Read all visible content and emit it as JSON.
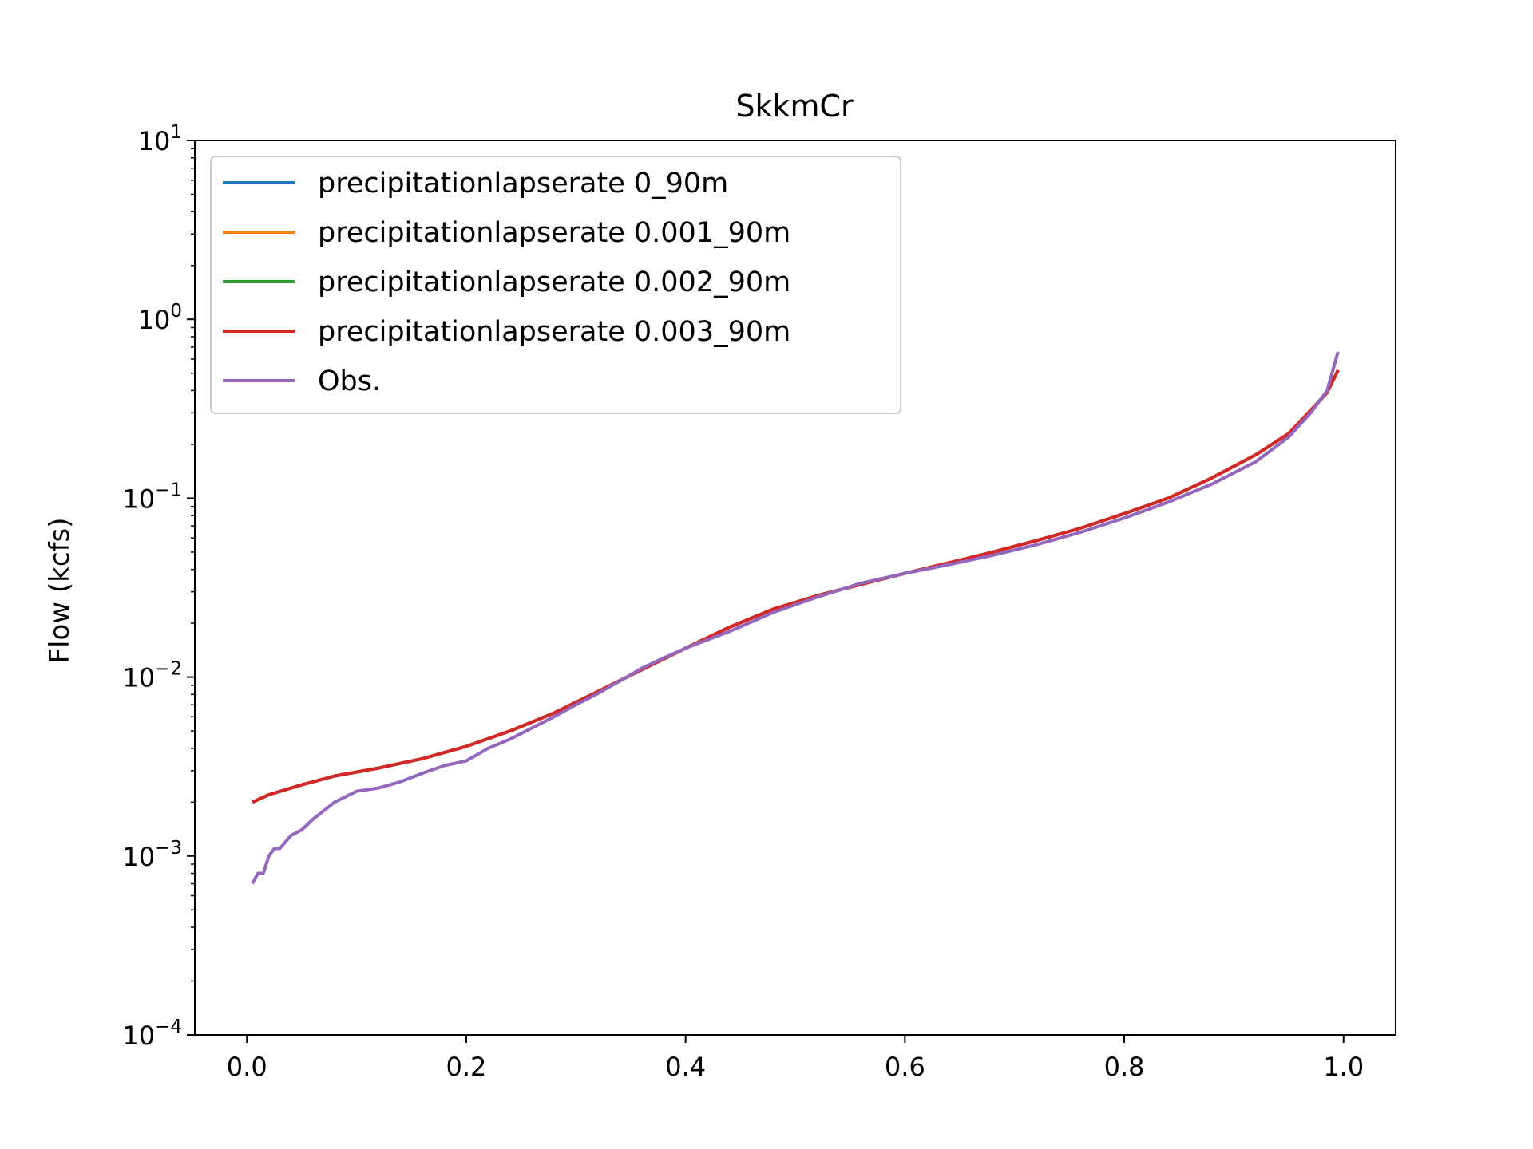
{
  "chart_data": {
    "type": "line",
    "title": "SkkmCr",
    "xlabel": "",
    "ylabel": "Flow (kcfs)",
    "yscale": "log",
    "xlim": [
      -0.0475,
      1.0475
    ],
    "ylim": [
      0.0001,
      10
    ],
    "xticks": [
      0.0,
      0.2,
      0.4,
      0.6,
      0.8,
      1.0
    ],
    "xtick_labels": [
      "0.0",
      "0.2",
      "0.4",
      "0.6",
      "0.8",
      "1.0"
    ],
    "yticks": [
      {
        "value": 0.0001,
        "base": "10",
        "exp": "−4"
      },
      {
        "value": 0.001,
        "base": "10",
        "exp": "−3"
      },
      {
        "value": 0.01,
        "base": "10",
        "exp": "−2"
      },
      {
        "value": 0.1,
        "base": "10",
        "exp": "−1"
      },
      {
        "value": 1,
        "base": "10",
        "exp": "0"
      },
      {
        "value": 10,
        "base": "10",
        "exp": "1"
      }
    ],
    "legend_position": "top-left",
    "grid": false,
    "series": [
      {
        "name": "precipitationlapserate 0_90m",
        "color": "#1f77b4",
        "x": [
          0.005,
          0.02,
          0.05,
          0.08,
          0.12,
          0.16,
          0.2,
          0.24,
          0.28,
          0.32,
          0.36,
          0.4,
          0.44,
          0.48,
          0.52,
          0.56,
          0.6,
          0.64,
          0.68,
          0.72,
          0.76,
          0.8,
          0.84,
          0.88,
          0.92,
          0.95,
          0.97,
          0.985,
          0.995
        ],
        "y": [
          0.002,
          0.0022,
          0.0025,
          0.0028,
          0.0031,
          0.0035,
          0.0041,
          0.005,
          0.0063,
          0.0083,
          0.011,
          0.0145,
          0.019,
          0.024,
          0.0285,
          0.033,
          0.038,
          0.0435,
          0.05,
          0.058,
          0.068,
          0.082,
          0.1,
          0.13,
          0.175,
          0.23,
          0.31,
          0.39,
          0.52
        ]
      },
      {
        "name": "precipitationlapserate 0.001_90m",
        "color": "#ff7f0e",
        "x": [
          0.005,
          0.02,
          0.05,
          0.08,
          0.12,
          0.16,
          0.2,
          0.24,
          0.28,
          0.32,
          0.36,
          0.4,
          0.44,
          0.48,
          0.52,
          0.56,
          0.6,
          0.64,
          0.68,
          0.72,
          0.76,
          0.8,
          0.84,
          0.88,
          0.92,
          0.95,
          0.97,
          0.985,
          0.995
        ],
        "y": [
          0.002,
          0.0022,
          0.0025,
          0.0028,
          0.0031,
          0.0035,
          0.0041,
          0.005,
          0.0063,
          0.0083,
          0.011,
          0.0145,
          0.019,
          0.024,
          0.0285,
          0.033,
          0.038,
          0.0435,
          0.05,
          0.058,
          0.068,
          0.082,
          0.1,
          0.13,
          0.175,
          0.23,
          0.31,
          0.39,
          0.52
        ]
      },
      {
        "name": "precipitationlapserate 0.002_90m",
        "color": "#2ca02c",
        "x": [
          0.005,
          0.02,
          0.05,
          0.08,
          0.12,
          0.16,
          0.2,
          0.24,
          0.28,
          0.32,
          0.36,
          0.4,
          0.44,
          0.48,
          0.52,
          0.56,
          0.6,
          0.64,
          0.68,
          0.72,
          0.76,
          0.8,
          0.84,
          0.88,
          0.92,
          0.95,
          0.97,
          0.985,
          0.995
        ],
        "y": [
          0.002,
          0.0022,
          0.0025,
          0.0028,
          0.0031,
          0.0035,
          0.0041,
          0.005,
          0.0063,
          0.0083,
          0.011,
          0.0145,
          0.019,
          0.024,
          0.0285,
          0.033,
          0.038,
          0.0435,
          0.05,
          0.058,
          0.068,
          0.082,
          0.1,
          0.13,
          0.175,
          0.23,
          0.31,
          0.39,
          0.52
        ]
      },
      {
        "name": "precipitationlapserate 0.003_90m",
        "color": "#d62728",
        "x": [
          0.005,
          0.02,
          0.05,
          0.08,
          0.12,
          0.16,
          0.2,
          0.24,
          0.28,
          0.32,
          0.36,
          0.4,
          0.44,
          0.48,
          0.52,
          0.56,
          0.6,
          0.64,
          0.68,
          0.72,
          0.76,
          0.8,
          0.84,
          0.88,
          0.92,
          0.95,
          0.97,
          0.985,
          0.995
        ],
        "y": [
          0.002,
          0.0022,
          0.0025,
          0.0028,
          0.0031,
          0.0035,
          0.0041,
          0.005,
          0.0063,
          0.0083,
          0.011,
          0.0145,
          0.019,
          0.024,
          0.0285,
          0.033,
          0.038,
          0.0435,
          0.05,
          0.058,
          0.068,
          0.082,
          0.1,
          0.13,
          0.175,
          0.23,
          0.31,
          0.39,
          0.52
        ]
      },
      {
        "name": "Obs.",
        "color": "#9467bd",
        "x": [
          0.005,
          0.01,
          0.015,
          0.02,
          0.025,
          0.03,
          0.04,
          0.05,
          0.06,
          0.08,
          0.1,
          0.12,
          0.14,
          0.16,
          0.18,
          0.2,
          0.22,
          0.24,
          0.26,
          0.28,
          0.3,
          0.32,
          0.34,
          0.36,
          0.38,
          0.4,
          0.44,
          0.48,
          0.52,
          0.56,
          0.6,
          0.64,
          0.68,
          0.72,
          0.76,
          0.8,
          0.84,
          0.88,
          0.92,
          0.95,
          0.97,
          0.985,
          0.995
        ],
        "y": [
          0.0007,
          0.0008,
          0.0008,
          0.001,
          0.0011,
          0.0011,
          0.0013,
          0.0014,
          0.0016,
          0.002,
          0.0023,
          0.0024,
          0.0026,
          0.0029,
          0.0032,
          0.0034,
          0.004,
          0.0045,
          0.0052,
          0.006,
          0.007,
          0.0081,
          0.0095,
          0.0112,
          0.0128,
          0.0145,
          0.018,
          0.023,
          0.028,
          0.0335,
          0.038,
          0.0425,
          0.048,
          0.055,
          0.0645,
          0.0775,
          0.095,
          0.12,
          0.16,
          0.22,
          0.3,
          0.4,
          0.66
        ]
      }
    ]
  }
}
